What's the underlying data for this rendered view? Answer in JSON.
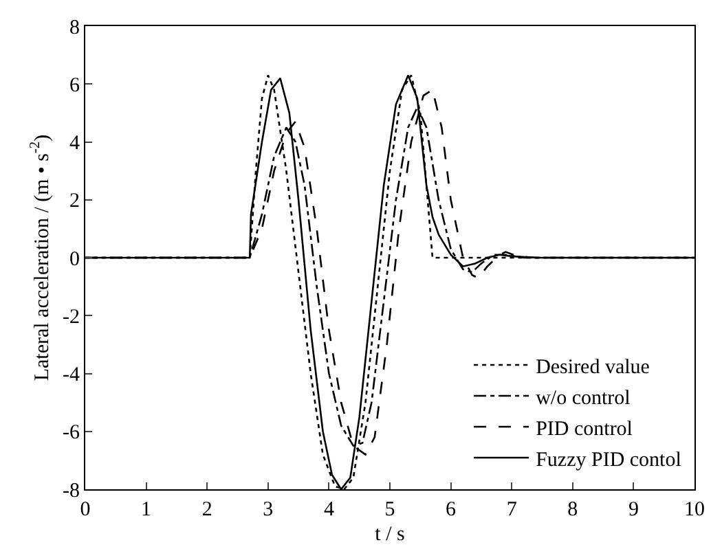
{
  "chart_data": {
    "type": "line",
    "xlabel": "t / s",
    "ylabel": "Lateral acceleration / (m • s$^{-2}$)",
    "xlim": [
      0,
      10
    ],
    "xticks": [
      0,
      1,
      2,
      3,
      4,
      5,
      6,
      7,
      8,
      9,
      10
    ],
    "ylim": [
      -8,
      8
    ],
    "yticks": [
      -8,
      -6,
      -4,
      -2,
      0,
      2,
      4,
      6,
      8
    ],
    "legend": "bottom right",
    "marker": "none",
    "series": [
      {
        "name": "Desired value",
        "color": "#000000",
        "line_style": "dotted",
        "x": [
          0,
          2.7,
          2.8,
          2.9,
          3.0,
          3.1,
          3.3,
          3.5,
          3.7,
          3.9,
          4.1,
          4.25,
          4.4,
          4.6,
          4.8,
          5.0,
          5.2,
          5.35,
          5.5,
          5.6,
          5.7,
          10
        ],
        "values": [
          0,
          0,
          3,
          5.5,
          6.3,
          5.8,
          3,
          -0.5,
          -4,
          -6.8,
          -7.9,
          -8,
          -7.6,
          -5,
          -1,
          3,
          5.8,
          6.3,
          5,
          2.5,
          0,
          0
        ]
      },
      {
        "name": "w/o control",
        "color": "#000000",
        "line_style": "dashdot",
        "x": [
          0,
          2.7,
          2.9,
          3.1,
          3.3,
          3.45,
          3.6,
          3.8,
          4.0,
          4.2,
          4.4,
          4.55,
          4.7,
          4.9,
          5.1,
          5.3,
          5.45,
          5.6,
          5.8,
          6.0,
          6.2,
          6.35,
          6.5,
          6.7,
          6.9,
          7.2,
          10
        ],
        "values": [
          0,
          0,
          1.5,
          3.5,
          4.5,
          4,
          2.5,
          -1,
          -4,
          -5.8,
          -6.5,
          -6.4,
          -5,
          -1.5,
          2,
          4.5,
          5.2,
          4.5,
          2,
          0.3,
          -0.4,
          -0.5,
          -0.2,
          0.1,
          0.1,
          0,
          0
        ]
      },
      {
        "name": "PID control",
        "color": "#000000",
        "line_style": "dashed",
        "x": [
          0,
          2.7,
          2.9,
          3.1,
          3.3,
          3.45,
          3.6,
          3.8,
          4.0,
          4.2,
          4.4,
          4.6,
          4.75,
          4.95,
          5.15,
          5.35,
          5.55,
          5.7,
          5.85,
          6.0,
          6.2,
          6.35,
          6.45,
          6.6,
          6.8,
          6.9,
          7.1,
          7.4,
          10
        ],
        "values": [
          0,
          0,
          1,
          3,
          4.3,
          4.7,
          3.8,
          1,
          -2.5,
          -5,
          -6.5,
          -6.8,
          -6.2,
          -3,
          1,
          4,
          5.6,
          5.8,
          4.5,
          2,
          0,
          -0.6,
          -0.7,
          -0.3,
          0.1,
          0.2,
          0.05,
          0,
          0
        ]
      },
      {
        "name": "Fuzzy PID contol",
        "color": "#000000",
        "line_style": "solid",
        "x": [
          0,
          2.7,
          2.72,
          2.9,
          3.05,
          3.2,
          3.35,
          3.5,
          3.7,
          3.9,
          4.05,
          4.2,
          4.35,
          4.5,
          4.7,
          4.9,
          5.1,
          5.3,
          5.45,
          5.6,
          5.7,
          5.8,
          6.0,
          6.2,
          6.4,
          6.6,
          6.8,
          7.0,
          7.4,
          10
        ],
        "values": [
          0,
          0,
          1.5,
          4,
          5.8,
          6.2,
          5,
          2,
          -2.5,
          -6,
          -7.5,
          -8,
          -7.6,
          -5.5,
          -1.5,
          2.5,
          5.3,
          6.3,
          5.5,
          2.5,
          1.4,
          0.8,
          0.1,
          -0.3,
          -0.2,
          0,
          0.1,
          0.05,
          0,
          0
        ]
      }
    ]
  }
}
